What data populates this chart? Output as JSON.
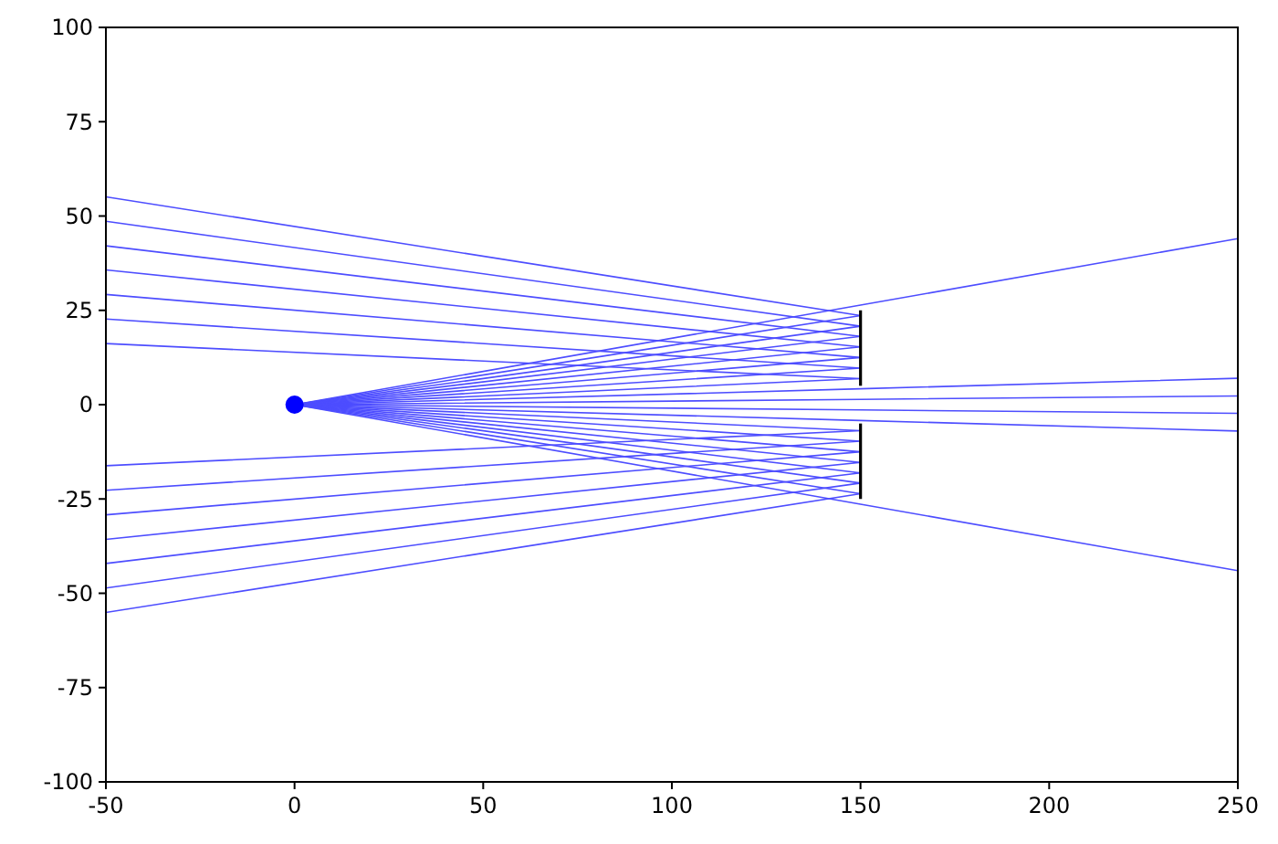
{
  "chart_data": {
    "type": "line",
    "xlim": [
      -50,
      250
    ],
    "ylim": [
      -100,
      100
    ],
    "xticks": [
      -50,
      0,
      50,
      100,
      150,
      200,
      250
    ],
    "yticks": [
      -100,
      -75,
      -50,
      -25,
      0,
      25,
      50,
      75,
      100
    ],
    "grid": false,
    "marker": "none",
    "line_style": "solid",
    "series": [
      {
        "color": "#4d4dff",
        "x": [
          0,
          150,
          250
        ],
        "values": [
          0,
          26.4,
          44.0
        ]
      },
      {
        "color": "#4d4dff",
        "x": [
          0,
          150,
          -50
        ],
        "values": [
          0,
          23.6,
          55.1
        ]
      },
      {
        "color": "#4d4dff",
        "x": [
          0,
          150,
          -50
        ],
        "values": [
          0,
          20.8,
          48.6
        ]
      },
      {
        "color": "#4d4dff",
        "x": [
          0,
          150,
          -50
        ],
        "values": [
          0,
          18.1,
          42.1
        ]
      },
      {
        "color": "#4d4dff",
        "x": [
          0,
          150,
          -50
        ],
        "values": [
          0,
          15.3,
          35.7
        ]
      },
      {
        "color": "#4d4dff",
        "x": [
          0,
          150,
          -50
        ],
        "values": [
          0,
          12.5,
          29.2
        ]
      },
      {
        "color": "#4d4dff",
        "x": [
          0,
          150,
          -50
        ],
        "values": [
          0,
          9.7,
          22.7
        ]
      },
      {
        "color": "#4d4dff",
        "x": [
          0,
          150,
          -50
        ],
        "values": [
          0,
          6.9,
          16.2
        ]
      },
      {
        "color": "#4d4dff",
        "x": [
          0,
          150,
          250
        ],
        "values": [
          0,
          4.2,
          7.0
        ]
      },
      {
        "color": "#4d4dff",
        "x": [
          0,
          150,
          250
        ],
        "values": [
          0,
          1.4,
          2.3
        ]
      },
      {
        "color": "#4d4dff",
        "x": [
          0,
          150,
          250
        ],
        "values": [
          0,
          -1.4,
          -2.3
        ]
      },
      {
        "color": "#4d4dff",
        "x": [
          0,
          150,
          250
        ],
        "values": [
          0,
          -4.2,
          -7.0
        ]
      },
      {
        "color": "#4d4dff",
        "x": [
          0,
          150,
          -50
        ],
        "values": [
          0,
          -6.9,
          -16.2
        ]
      },
      {
        "color": "#4d4dff",
        "x": [
          0,
          150,
          -50
        ],
        "values": [
          0,
          -9.7,
          -22.7
        ]
      },
      {
        "color": "#4d4dff",
        "x": [
          0,
          150,
          -50
        ],
        "values": [
          0,
          -12.5,
          -29.2
        ]
      },
      {
        "color": "#4d4dff",
        "x": [
          0,
          150,
          -50
        ],
        "values": [
          0,
          -15.3,
          -35.7
        ]
      },
      {
        "color": "#4d4dff",
        "x": [
          0,
          150,
          -50
        ],
        "values": [
          0,
          -18.1,
          -42.1
        ]
      },
      {
        "color": "#4d4dff",
        "x": [
          0,
          150,
          -50
        ],
        "values": [
          0,
          -20.8,
          -48.6
        ]
      },
      {
        "color": "#4d4dff",
        "x": [
          0,
          150,
          -50
        ],
        "values": [
          0,
          -23.6,
          -55.1
        ]
      },
      {
        "color": "#4d4dff",
        "x": [
          0,
          150,
          250
        ],
        "values": [
          0,
          -26.4,
          -44.0
        ]
      },
      {
        "color": "#000000",
        "x": [
          150,
          150
        ],
        "values": [
          5,
          25
        ]
      },
      {
        "color": "#000000",
        "x": [
          150,
          150
        ],
        "values": [
          -5,
          -25
        ]
      },
      {
        "type": "scatter",
        "color": "#0000ff",
        "x": [
          0
        ],
        "values": [
          0
        ],
        "marker": "circle"
      }
    ]
  }
}
